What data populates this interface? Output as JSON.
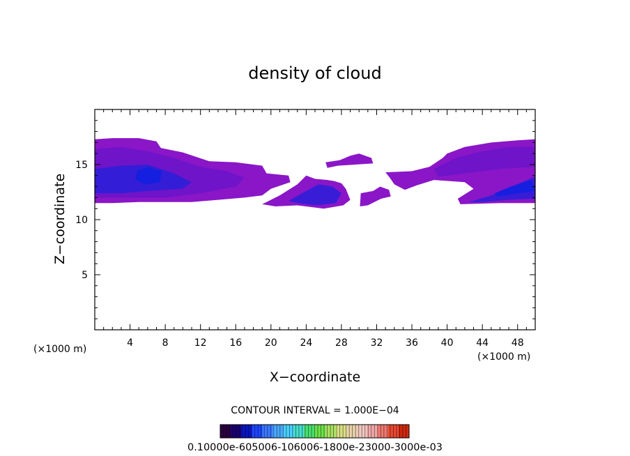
{
  "chart_data": {
    "type": "heatmap",
    "title": "density of cloud",
    "xlabel": "X−coordinate",
    "ylabel": "Z−coordinate",
    "x_unit_left": "(×1000 m)",
    "x_unit_right": "(×1000 m)",
    "xlim": [
      0,
      50
    ],
    "ylim": [
      0,
      20
    ],
    "x_ticks": [
      "4",
      "8",
      "12",
      "16",
      "20",
      "24",
      "28",
      "32",
      "36",
      "40",
      "44",
      "48"
    ],
    "y_ticks": [
      "5",
      "10",
      "15"
    ],
    "contour_interval": "CONTOUR INTERVAL = 1.000E−04",
    "colorbar_label": "0.10000e-605006-106006-1800e-23000-3000e-03",
    "colorbar_colors": [
      "#2a0040",
      "#180070",
      "#0a14c0",
      "#1e46ff",
      "#3a78ff",
      "#4aa8ff",
      "#4ad0ff",
      "#46ddcc",
      "#48e070",
      "#6ae048",
      "#a8e060",
      "#d8e080",
      "#e8d2a8",
      "#f0c8c0",
      "#f0a8a8",
      "#f07870",
      "#e84830",
      "#d02810"
    ],
    "outer_color": "#8a16c8",
    "mid_color": "#6a14c8",
    "core_color": "#2a1ed8",
    "deep_color": "#1020e0",
    "regions": [
      {
        "level": "outer",
        "points": [
          [
            0,
            17.3
          ],
          [
            2,
            17.4
          ],
          [
            5,
            17.4
          ],
          [
            7,
            17.1
          ],
          [
            7.5,
            16.5
          ],
          [
            10,
            16.1
          ],
          [
            13,
            15.3
          ],
          [
            16,
            15.2
          ],
          [
            19,
            14.9
          ],
          [
            19.5,
            14.2
          ],
          [
            22,
            14
          ],
          [
            22.2,
            13.4
          ],
          [
            20,
            12.8
          ],
          [
            19,
            12.2
          ],
          [
            17,
            12
          ],
          [
            14,
            11.8
          ],
          [
            11,
            11.6
          ],
          [
            8,
            11.6
          ],
          [
            5,
            11.6
          ],
          [
            2,
            11.5
          ],
          [
            0,
            11.5
          ]
        ]
      },
      {
        "level": "mid",
        "points": [
          [
            0,
            16.4
          ],
          [
            3,
            16.6
          ],
          [
            6,
            16.2
          ],
          [
            9,
            15.6
          ],
          [
            12,
            14.8
          ],
          [
            15,
            14.4
          ],
          [
            17,
            13.8
          ],
          [
            16,
            13
          ],
          [
            12,
            12.4
          ],
          [
            8,
            12
          ],
          [
            4,
            12
          ],
          [
            0,
            12
          ]
        ]
      },
      {
        "level": "core",
        "points": [
          [
            0,
            14.6
          ],
          [
            3,
            14.9
          ],
          [
            6,
            15
          ],
          [
            9,
            14.2
          ],
          [
            11,
            13.4
          ],
          [
            10,
            12.8
          ],
          [
            6,
            12.6
          ],
          [
            3,
            12.4
          ],
          [
            0,
            12.4
          ]
        ]
      },
      {
        "level": "deep",
        "points": [
          [
            4.8,
            14.4
          ],
          [
            6,
            14.8
          ],
          [
            7.6,
            14.4
          ],
          [
            7.4,
            13.4
          ],
          [
            5.6,
            13.2
          ],
          [
            4.6,
            13.7
          ]
        ]
      },
      {
        "level": "outer",
        "points": [
          [
            19,
            11.4
          ],
          [
            21,
            12.2
          ],
          [
            23,
            13.2
          ],
          [
            24,
            14
          ],
          [
            25,
            13.7
          ],
          [
            26.4,
            13.6
          ],
          [
            27.2,
            13.5
          ],
          [
            28,
            13.3
          ],
          [
            28.5,
            12.8
          ],
          [
            29,
            11.8
          ],
          [
            28.2,
            11.3
          ],
          [
            26,
            11
          ],
          [
            23,
            11.3
          ],
          [
            20.5,
            11.2
          ]
        ]
      },
      {
        "level": "core",
        "points": [
          [
            22,
            11.7
          ],
          [
            24,
            12.6
          ],
          [
            25.4,
            13.2
          ],
          [
            27,
            13
          ],
          [
            28,
            12.4
          ],
          [
            27.4,
            11.5
          ],
          [
            25.2,
            11.3
          ],
          [
            23,
            11.5
          ]
        ]
      },
      {
        "level": "outer",
        "points": [
          [
            26.2,
            15.2
          ],
          [
            27.8,
            15.4
          ],
          [
            29,
            15.8
          ],
          [
            30,
            16
          ],
          [
            31.4,
            15.6
          ],
          [
            31.6,
            15.1
          ],
          [
            29.6,
            15
          ],
          [
            27.6,
            14.9
          ],
          [
            26.4,
            14.7
          ]
        ]
      },
      {
        "level": "outer",
        "points": [
          [
            30.2,
            12.4
          ],
          [
            31.6,
            12.6
          ],
          [
            32.4,
            13
          ],
          [
            33.4,
            12.7
          ],
          [
            33.6,
            12.1
          ],
          [
            32.5,
            11.9
          ],
          [
            31,
            11.3
          ],
          [
            30.1,
            11.2
          ]
        ]
      },
      {
        "level": "outer",
        "points": [
          [
            33,
            14.3
          ],
          [
            36,
            14.4
          ],
          [
            38,
            14.8
          ],
          [
            39.5,
            15.6
          ],
          [
            40,
            16
          ],
          [
            42,
            16.6
          ],
          [
            45,
            17
          ],
          [
            48,
            17.2
          ],
          [
            50,
            17.3
          ],
          [
            50,
            11.5
          ],
          [
            46,
            11.5
          ],
          [
            41.5,
            11.4
          ],
          [
            41.2,
            11.9
          ],
          [
            43,
            12.8
          ],
          [
            42,
            13.4
          ],
          [
            38.5,
            13.6
          ],
          [
            36.5,
            13.1
          ],
          [
            35.2,
            12.7
          ],
          [
            34,
            13.2
          ],
          [
            33.5,
            13.8
          ]
        ]
      },
      {
        "level": "mid",
        "points": [
          [
            38.5,
            14.6
          ],
          [
            41,
            15.6
          ],
          [
            44,
            16.2
          ],
          [
            47,
            16.6
          ],
          [
            50,
            16.6
          ],
          [
            50,
            14.8
          ],
          [
            46,
            14.6
          ],
          [
            42,
            14.2
          ],
          [
            39,
            13.9
          ]
        ]
      },
      {
        "level": "core",
        "points": [
          [
            42.5,
            11.6
          ],
          [
            45,
            12.2
          ],
          [
            47,
            12.9
          ],
          [
            50,
            13.9
          ],
          [
            50,
            11.9
          ],
          [
            47,
            11.8
          ],
          [
            44,
            11.6
          ]
        ]
      },
      {
        "level": "deep",
        "points": [
          [
            45.4,
            12.4
          ],
          [
            47.2,
            13
          ],
          [
            49.6,
            13.6
          ],
          [
            50,
            12.6
          ],
          [
            47.4,
            12.3
          ],
          [
            45.6,
            12.1
          ]
        ]
      }
    ]
  }
}
